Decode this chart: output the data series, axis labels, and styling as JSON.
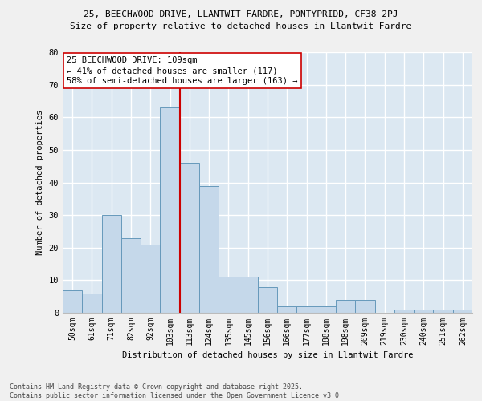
{
  "title1": "25, BEECHWOOD DRIVE, LLANTWIT FARDRE, PONTYPRIDD, CF38 2PJ",
  "title2": "Size of property relative to detached houses in Llantwit Fardre",
  "xlabel": "Distribution of detached houses by size in Llantwit Fardre",
  "ylabel": "Number of detached properties",
  "categories": [
    "50sqm",
    "61sqm",
    "71sqm",
    "82sqm",
    "92sqm",
    "103sqm",
    "113sqm",
    "124sqm",
    "135sqm",
    "145sqm",
    "156sqm",
    "166sqm",
    "177sqm",
    "188sqm",
    "198sqm",
    "209sqm",
    "219sqm",
    "230sqm",
    "240sqm",
    "251sqm",
    "262sqm"
  ],
  "values": [
    7,
    6,
    30,
    23,
    21,
    63,
    46,
    39,
    11,
    11,
    8,
    2,
    2,
    2,
    4,
    4,
    0,
    1,
    1,
    1,
    1
  ],
  "bar_color": "#c5d8ea",
  "bar_edge_color": "#6699bb",
  "bg_color": "#dce8f2",
  "grid_color": "#ffffff",
  "vline_color": "#cc0000",
  "annotation_text": "25 BEECHWOOD DRIVE: 109sqm\n← 41% of detached houses are smaller (117)\n58% of semi-detached houses are larger (163) →",
  "footnote": "Contains HM Land Registry data © Crown copyright and database right 2025.\nContains public sector information licensed under the Open Government Licence v3.0.",
  "ylim": [
    0,
    80
  ],
  "yticks": [
    0,
    10,
    20,
    30,
    40,
    50,
    60,
    70,
    80
  ],
  "fig_bg": "#f0f0f0"
}
